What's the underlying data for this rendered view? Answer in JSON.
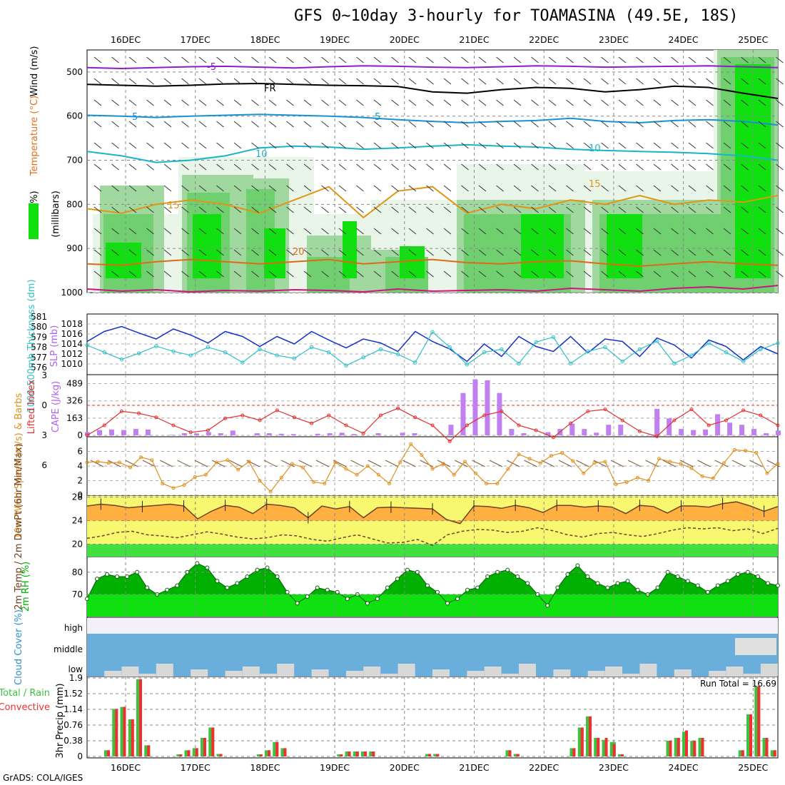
{
  "title": "GFS 0~10day 3-hourly for TOAMASINA (49.5E, 18S)",
  "credit": "GrADS: COLA/IGES",
  "run_total_label": "Run Total = 16.69",
  "colors": {
    "temp_0": "#d0137d",
    "temp_5": "#8c1ec8",
    "temp_10": "#19b4c8",
    "temp_15": "#e09614",
    "freezing": "#000000",
    "rh_light": "#e8f5e8",
    "rh_mid": "#a0d8a0",
    "rh_high": "#70d070",
    "rh_max": "#10e010",
    "slp": "#1432c8",
    "thickness": "#30c0c8",
    "lifted": "#e03030",
    "cape": "#c080f0",
    "wind": "#e09020",
    "temp_fill": "#ffb040",
    "dew_fill": "#f8f870",
    "low_fill": "#40e040",
    "rh2m_dark": "#00b000",
    "rh2m_light": "#10e010",
    "cloud": "#6aaedc",
    "cloud_clear": "#f4f0f8",
    "precip_total": "#40c040",
    "precip_conv": "#f03030"
  },
  "chart_data": [
    {
      "type": "heatmap",
      "panel": "upper-air",
      "xlabel_dates": [
        "16DEC",
        "17DEC",
        "18DEC",
        "19DEC",
        "20DEC",
        "21DEC",
        "22DEC",
        "23DEC",
        "24DEC",
        "25DEC"
      ],
      "ylabel": "(millibars)",
      "legend_labels": [
        "RH (%)",
        "Temperature (°C)",
        "Wind (m/s)"
      ],
      "yticks": [
        500,
        600,
        700,
        800,
        900,
        1000
      ],
      "ylim": [
        450,
        1000
      ],
      "contour_labels": [
        "-5",
        "FR",
        "5",
        "10",
        "15",
        "20"
      ],
      "isotherms": [
        {
          "label": "-5",
          "color": "#8c1ec8",
          "y_mb": [
            490,
            492,
            490,
            488,
            487,
            489,
            491,
            488,
            486,
            487,
            489,
            490,
            488,
            486,
            487,
            489,
            488,
            487,
            486,
            488,
            490
          ]
        },
        {
          "label": "FR",
          "color": "#000000",
          "y_mb": [
            528,
            530,
            532,
            530,
            527,
            526,
            528,
            530,
            531,
            533,
            545,
            548,
            540,
            535,
            537,
            545,
            540,
            532,
            535,
            548,
            560
          ]
        },
        {
          "label": "5",
          "color": "#1990d0",
          "y_mb": [
            598,
            600,
            603,
            600,
            598,
            596,
            598,
            600,
            603,
            608,
            612,
            615,
            612,
            610,
            605,
            612,
            615,
            610,
            608,
            612,
            620
          ]
        },
        {
          "label": "10",
          "color": "#19b4c8",
          "y_mb": [
            680,
            690,
            705,
            700,
            690,
            672,
            668,
            670,
            675,
            672,
            668,
            665,
            668,
            670,
            675,
            678,
            680,
            682,
            685,
            690,
            700
          ]
        },
        {
          "label": "15",
          "color": "#e09614",
          "y_mb": [
            810,
            820,
            800,
            790,
            800,
            820,
            790,
            760,
            830,
            770,
            760,
            820,
            800,
            810,
            790,
            800,
            780,
            800,
            790,
            795,
            780
          ]
        },
        {
          "label": "20",
          "color": "#e06a14",
          "y_mb": [
            935,
            938,
            930,
            925,
            930,
            935,
            930,
            925,
            935,
            930,
            925,
            932,
            935,
            930,
            928,
            935,
            940,
            935,
            930,
            935,
            938
          ]
        }
      ]
    },
    {
      "type": "line",
      "panel": "slp-thickness",
      "ylabel_left": "1000-500mb Thickness (dm)",
      "ylabel_right": "SLP (mb)",
      "yticks_left": [
        576,
        577,
        578,
        579,
        580,
        581
      ],
      "yticks_right": [
        1010,
        1012,
        1014,
        1016,
        1018
      ],
      "series": [
        {
          "name": "SLP",
          "values": [
            1014.5,
            1016.5,
            1017.5,
            1016.2,
            1015,
            1017,
            1015.8,
            1014.2,
            1016.5,
            1015.5,
            1013.5,
            1015.5,
            1014,
            1016.5,
            1014.8,
            1013.2,
            1015,
            1014.2,
            1012.5,
            1016.5,
            1014.5,
            1013,
            1010.5,
            1014,
            1011.5,
            1015.5,
            1013.5,
            1012.5,
            1015.5,
            1012.2,
            1015,
            1014.5,
            1011.5,
            1015.2,
            1013.8,
            1011.2,
            1014.8,
            1013.5,
            1010.8,
            1013.5,
            1012
          ]
        },
        {
          "name": "Thickness",
          "values": [
            578.2,
            577.5,
            576.8,
            577.4,
            578.1,
            577.6,
            577.2,
            578,
            577.5,
            576.5,
            577.8,
            577.2,
            576.9,
            578,
            577.5,
            576.2,
            577,
            577.8,
            577.3,
            576.5,
            579.5,
            578,
            576.3,
            577.5,
            577.8,
            576.4,
            578.5,
            579,
            576.4,
            577.6,
            578,
            576.6,
            577.8,
            578.6,
            576.4,
            577.2,
            578.4,
            577.5,
            576.6,
            577.8,
            578.4
          ]
        }
      ]
    },
    {
      "type": "bar",
      "panel": "lifted-cape",
      "ylabel_left": "Lifted Index",
      "ylabel_right": "CAPE (J/kg)",
      "yticks_left": [
        -3,
        0,
        3,
        6
      ],
      "yticks_right": [
        0,
        163,
        326,
        489
      ],
      "series": [
        {
          "name": "Lifted Index",
          "values": [
            3,
            2,
            0.6,
            0.8,
            1.2,
            2,
            2.7,
            2.5,
            1.3,
            1,
            1.5,
            0.5,
            1.2,
            1.8,
            1,
            2,
            2.8,
            1,
            0.3,
            1.2,
            2,
            3.6,
            2,
            1,
            0.6,
            2,
            2.5,
            3.2,
            1.8,
            0.6,
            0.4,
            1.5,
            2.6,
            3.1,
            1.5,
            0.4,
            2,
            1.5,
            0.5,
            1,
            2
          ]
        },
        {
          "name": "CAPE",
          "values": [
            30,
            50,
            55,
            50,
            60,
            55,
            0,
            5,
            20,
            18,
            30,
            20,
            45,
            0,
            20,
            20,
            15,
            12,
            0,
            15,
            20,
            25,
            12,
            0,
            20,
            0,
            25,
            20,
            0,
            0,
            100,
            400,
            530,
            520,
            400,
            60,
            20,
            0,
            30,
            60,
            110,
            60,
            25,
            100,
            100,
            0,
            0,
            250,
            160,
            60,
            50,
            55,
            200,
            120,
            100,
            60,
            20,
            45
          ]
        }
      ]
    },
    {
      "type": "line",
      "panel": "wind-10m",
      "ylabel": "10m Wind Speed (m/s) & Barbs",
      "yticks": [
        0,
        2,
        4,
        6
      ],
      "ylim": [
        0,
        8
      ],
      "series": [
        {
          "name": "Wind speed",
          "values": [
            4.5,
            4.6,
            4.4,
            4.5,
            3.8,
            5.2,
            4.8,
            1.6,
            1,
            1.4,
            2.5,
            2.8,
            4.5,
            4.8,
            3.5,
            4.6,
            2,
            0.5,
            2.4,
            4.3,
            3.8,
            1.8,
            1.6,
            4.5,
            3.6,
            2.8,
            4,
            2.8,
            1.6,
            4.5,
            7,
            5.5,
            3.6,
            4.3,
            2.8,
            4.6,
            3,
            1.6,
            1.6,
            3.6,
            5.6,
            5,
            4.4,
            5.4,
            5.8,
            4.7,
            3,
            4.4,
            4.6,
            1.5,
            1.8,
            2.4,
            2,
            5,
            4.6,
            4.3,
            3.7,
            2.6,
            2.3,
            4.4,
            6.2,
            6.1,
            5.8,
            3,
            4.3
          ]
        }
      ]
    },
    {
      "type": "area",
      "panel": "temp-2m",
      "ylabel": "2m Temp / 2m DewPt (6hr Min/Max)",
      "yticks": [
        20,
        24,
        28
      ],
      "series": [
        {
          "name": "2m Temp",
          "values": [
            26.5,
            26.8,
            26.6,
            26.2,
            26.4,
            26.6,
            26.8,
            26.5,
            24.3,
            25.6,
            26.6,
            26.3,
            25.2,
            26.8,
            26.6,
            26.2,
            24.5,
            26.5,
            26,
            26.4,
            24.5,
            26.2,
            26.3,
            26.2,
            26.1,
            26,
            24.2,
            23.5,
            26.5,
            26.4,
            26.1,
            26.6,
            26.2,
            25.4,
            26.6,
            26.6,
            26.3,
            26.5,
            26.3,
            25.2,
            26.6,
            26.4,
            25.3,
            26.5,
            26.5,
            26.3,
            26.9,
            27.2,
            26.5,
            25.6,
            26.4
          ]
        },
        {
          "name": "2m DewPt",
          "values": [
            21,
            21.4,
            22,
            22.2,
            21.6,
            21.4,
            21.1,
            21.6,
            22.1,
            21.7,
            21.2,
            20.9,
            21.1,
            21.6,
            21.4,
            20.8,
            20.5,
            21.1,
            21.6,
            20.9,
            20.2,
            20.3,
            20.8,
            19.8,
            21.6,
            22.2,
            22.5,
            22.4,
            22,
            22.2,
            22.8,
            22.3,
            21.6,
            21.2,
            21.8,
            22,
            21.6,
            21.3,
            21.8,
            22.4,
            22.8,
            22.6,
            22.8,
            22.3,
            22.6,
            21.8,
            22.7
          ]
        }
      ]
    },
    {
      "type": "area",
      "panel": "rh-2m",
      "ylabel": "2m RH (%)",
      "yticks": [
        70,
        80
      ],
      "series": [
        {
          "name": "2m RH",
          "values": [
            68,
            77,
            79,
            78,
            78,
            80,
            73,
            70,
            72,
            74,
            80,
            84,
            82,
            76,
            73,
            75,
            78,
            81,
            82,
            78,
            71,
            66,
            69,
            73,
            72,
            71,
            68,
            70,
            66,
            68,
            73,
            77,
            81,
            80,
            74,
            71,
            66,
            68,
            72,
            73,
            78,
            80,
            81,
            78,
            75,
            70,
            65,
            73,
            79,
            83,
            78,
            75,
            73,
            75,
            76,
            72,
            70,
            73,
            80,
            78,
            76,
            74,
            71,
            74,
            76,
            79,
            80,
            78,
            75,
            74
          ]
        }
      ]
    },
    {
      "type": "bar",
      "panel": "cloud-cover",
      "ylabel": "Cloud Cover (%)",
      "categories": [
        "high",
        "middle",
        "low"
      ]
    },
    {
      "type": "bar",
      "panel": "precip-3hr",
      "ylabel": "3hr Precip (mm)",
      "legend_labels": [
        "Total / Rain",
        "Convective"
      ],
      "yticks": [
        0,
        0.38,
        0.76,
        1.14,
        1.52,
        1.9
      ],
      "yticklabels": [
        "0",
        "0.38",
        "0.76",
        "1.14",
        "1.52",
        "1.9"
      ],
      "series": [
        {
          "name": "Total / Rain",
          "values": [
            0.15,
            1.15,
            1.2,
            0.9,
            1.87,
            0.27,
            0,
            0,
            0,
            0.05,
            0.15,
            0.2,
            0.45,
            0.7,
            0.06,
            0,
            0,
            0,
            0,
            0.05,
            0.15,
            0.35,
            0.2,
            0,
            0,
            0,
            0,
            0,
            0,
            0.05,
            0.12,
            0.12,
            0.12,
            0.12,
            0,
            0,
            0,
            0,
            0,
            0,
            0.06,
            0.06,
            0,
            0,
            0,
            0,
            0,
            0,
            0,
            0,
            0.15,
            0.06,
            0,
            0,
            0,
            0,
            0,
            0,
            0.2,
            0.7,
            0.97,
            0.45,
            0.4,
            0.35,
            0.05,
            0,
            0,
            0,
            0,
            0,
            0.38,
            0.45,
            0.6,
            0.38,
            0.45,
            0,
            0,
            0,
            0,
            0.15,
            1.02,
            1.7,
            0.45,
            0.15
          ]
        },
        {
          "name": "Convective",
          "values": [
            0.15,
            1.15,
            1.2,
            0.9,
            1.87,
            0.27,
            0,
            0,
            0,
            0.05,
            0.15,
            0.2,
            0.45,
            0.7,
            0.06,
            0,
            0,
            0,
            0,
            0.05,
            0.15,
            0.35,
            0.2,
            0,
            0,
            0,
            0,
            0,
            0,
            0.05,
            0.12,
            0.12,
            0.12,
            0.12,
            0,
            0,
            0,
            0,
            0,
            0,
            0.06,
            0.06,
            0,
            0,
            0,
            0,
            0,
            0,
            0,
            0,
            0.15,
            0.06,
            0,
            0,
            0,
            0,
            0,
            0,
            0.2,
            0.7,
            0.97,
            0.45,
            0.45,
            0.3,
            0.05,
            0,
            0,
            0,
            0,
            0,
            0.38,
            0.45,
            0.63,
            0.38,
            0.45,
            0,
            0,
            0,
            0,
            0.15,
            1.02,
            1.7,
            0.45,
            0.15
          ]
        }
      ]
    }
  ]
}
